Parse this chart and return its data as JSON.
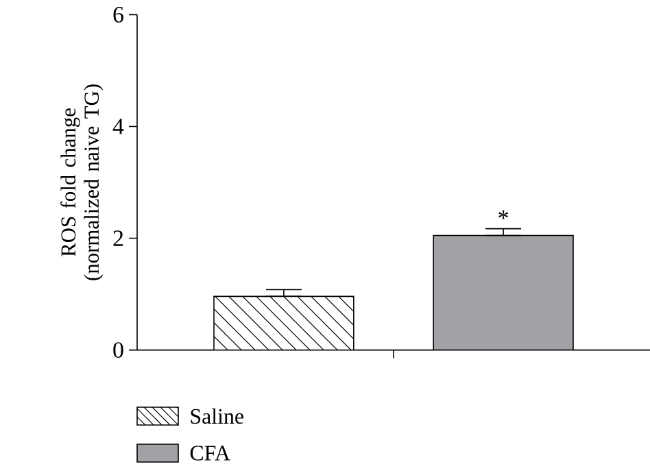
{
  "chart_data": {
    "type": "bar",
    "ylabel": "ROS fold change (normalized naive TG)",
    "categories": [
      null
    ],
    "series": [
      {
        "name": "Saline",
        "color": "#ffffff",
        "values": [
          0.96
        ],
        "errors": [
          [
            0.96,
            1.08
          ]
        ]
      },
      {
        "name": "CFA",
        "color": "#a0a2a5",
        "values": [
          2.05
        ],
        "errors": [
          [
            2.05,
            2.17
          ]
        ]
      }
    ],
    "ylim": [
      0,
      6
    ],
    "yticks": [
      0,
      2,
      4,
      6
    ],
    "annotations": [
      "*"
    ],
    "legend": "bottom left",
    "tick_labels": "y"
  }
}
